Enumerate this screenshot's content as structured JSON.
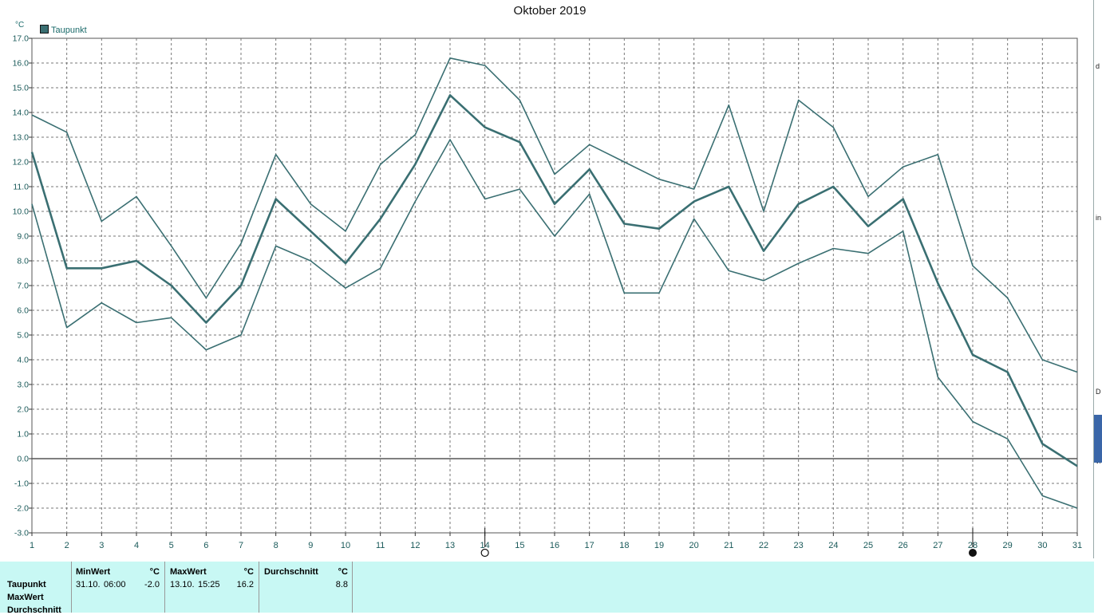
{
  "title": "Oktober 2019",
  "unit": "°C",
  "legend": {
    "label": "Taupunkt",
    "color": "#3a6f72"
  },
  "colors": {
    "line": "#3a6f72",
    "panel": "#c8f8f4",
    "zero_line": "#555555",
    "grid": "#777777"
  },
  "moon_markers": {
    "full_moon_day": 14,
    "new_moon_day": 28
  },
  "chart_data": {
    "type": "line",
    "x": [
      1,
      2,
      3,
      4,
      5,
      6,
      7,
      8,
      9,
      10,
      11,
      12,
      13,
      14,
      15,
      16,
      17,
      18,
      19,
      20,
      21,
      22,
      23,
      24,
      25,
      26,
      27,
      28,
      29,
      30,
      31
    ],
    "ylim": [
      -3.0,
      17.0
    ],
    "y_ticks": [
      "17.0",
      "16.0",
      "15.0",
      "14.0",
      "13.0",
      "12.0",
      "11.0",
      "10.0",
      "9.0",
      "8.0",
      "7.0",
      "6.0",
      "5.0",
      "4.0",
      "3.0",
      "2.0",
      "1.0",
      "0.0",
      "-1.0",
      "-2.0",
      "-3.0"
    ],
    "x_ticks": [
      "1",
      "2",
      "3",
      "4",
      "5",
      "6",
      "7",
      "8",
      "9",
      "10",
      "11",
      "12",
      "13",
      "14",
      "15",
      "16",
      "17",
      "18",
      "19",
      "20",
      "21",
      "22",
      "23",
      "24",
      "25",
      "26",
      "27",
      "28",
      "29",
      "30",
      "31"
    ],
    "grid": true,
    "series": [
      {
        "name": "",
        "role": "max",
        "values": [
          13.9,
          13.2,
          9.6,
          10.6,
          8.6,
          6.5,
          8.7,
          12.3,
          10.3,
          9.2,
          11.9,
          13.1,
          16.2,
          15.9,
          14.5,
          11.5,
          12.7,
          12.0,
          11.3,
          10.9,
          14.3,
          10.0,
          14.5,
          13.4,
          10.6,
          11.8,
          12.3,
          7.8,
          6.5,
          4.0,
          3.5
        ]
      },
      {
        "name": "Taupunkt",
        "role": "avg",
        "values": [
          12.4,
          7.7,
          7.7,
          8.0,
          7.0,
          5.5,
          7.0,
          10.5,
          9.2,
          7.9,
          9.7,
          11.9,
          14.7,
          13.4,
          12.8,
          10.3,
          11.7,
          9.5,
          9.3,
          10.4,
          11.0,
          8.4,
          10.3,
          11.0,
          9.4,
          10.5,
          7.1,
          4.2,
          3.5,
          0.6,
          -0.3
        ]
      },
      {
        "name": "",
        "role": "min",
        "values": [
          10.3,
          5.3,
          6.3,
          5.5,
          5.7,
          4.4,
          5.0,
          8.6,
          8.0,
          6.9,
          7.7,
          10.4,
          12.9,
          10.5,
          10.9,
          9.0,
          10.7,
          6.7,
          6.7,
          9.7,
          7.6,
          7.2,
          7.9,
          8.5,
          8.3,
          9.2,
          3.3,
          1.5,
          0.8,
          -1.5,
          -2.0
        ]
      }
    ]
  },
  "stats": {
    "rows": [
      "Taupunkt",
      "MaxWert",
      "Durchschnitt"
    ],
    "min": {
      "header": "MinWert",
      "unit": "°C",
      "date": "31.10.",
      "time": "06:00",
      "value": "-2.0"
    },
    "max": {
      "header": "MaxWert",
      "unit": "°C",
      "date": "13.10.",
      "time": "15:25",
      "value": "16.2"
    },
    "avg": {
      "header": "Durchschnitt",
      "unit": "°C",
      "value": "8.8"
    }
  },
  "right_edge_glyphs": [
    "d",
    "in",
    "D",
    "vi"
  ]
}
